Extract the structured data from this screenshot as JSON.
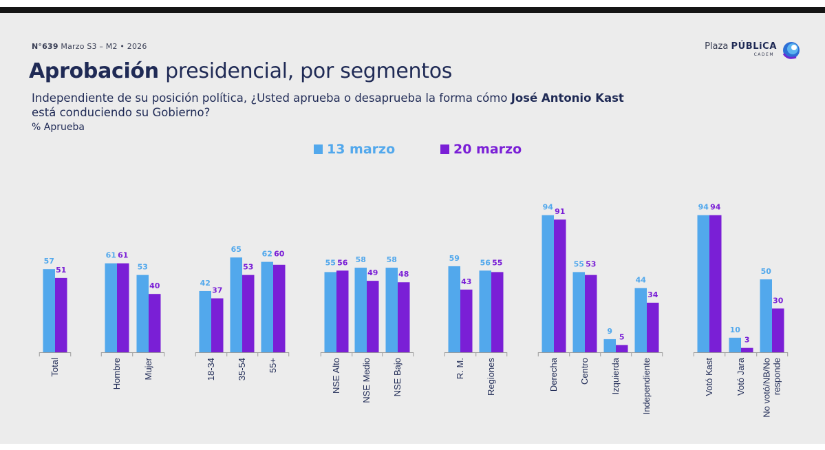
{
  "header": {
    "number": "N°639",
    "period": "Marzo S3 – M2 • 2026"
  },
  "logo": {
    "word_light": "Plaza",
    "word_bold": "PÚBLiCA",
    "sub": "CADEM",
    "icon": "circle-swirl-logo-icon"
  },
  "title": {
    "bold": "Aprobación",
    "rest": "presidencial, por segmentos"
  },
  "question": {
    "before": "Independiente de su posición política, ¿Usted aprueba o desaprueba la forma cómo",
    "name": "José Antonio Kast",
    "after": "está conduciendo su Gobierno?"
  },
  "unit_label": "% Aprueba",
  "colors": {
    "series1": "#52a8ec",
    "series2": "#7a1fd6",
    "label1": "#52a8ec",
    "label2": "#7a1fd6",
    "axis": "#9a9a9a",
    "text": "#1f2a55"
  },
  "chart_data": {
    "type": "bar",
    "categories": [
      "Total",
      "Hombre",
      "Mujer",
      "18-34",
      "35-54",
      "55+",
      "NSE Alto",
      "NSE Medio",
      "NSE Bajo",
      "R. M.",
      "Regiones",
      "Derecha",
      "Centro",
      "Izquierda",
      "Independiente",
      "Votó Kast",
      "Votó Jara",
      "No votó/NB/No responde"
    ],
    "category_lines": [
      [
        "Total"
      ],
      [
        "Hombre"
      ],
      [
        "Mujer"
      ],
      [
        "18-34"
      ],
      [
        "35-54"
      ],
      [
        "55+"
      ],
      [
        "NSE Alto"
      ],
      [
        "NSE Medio"
      ],
      [
        "NSE Bajo"
      ],
      [
        "R. M."
      ],
      [
        "Regiones"
      ],
      [
        "Derecha"
      ],
      [
        "Centro"
      ],
      [
        "Izquierda"
      ],
      [
        "Independiente"
      ],
      [
        "Votó Kast"
      ],
      [
        "Votó Jara"
      ],
      [
        "No votó/NB/No",
        "responde"
      ]
    ],
    "groups": [
      [
        0
      ],
      [
        1,
        2
      ],
      [
        3,
        4,
        5
      ],
      [
        6,
        7,
        8
      ],
      [
        9,
        10
      ],
      [
        11,
        12,
        13,
        14
      ],
      [
        15,
        16,
        17
      ]
    ],
    "series": [
      {
        "name": "13 marzo",
        "values": [
          57,
          61,
          53,
          42,
          65,
          62,
          55,
          58,
          58,
          59,
          56,
          94,
          55,
          9,
          44,
          94,
          10,
          50
        ]
      },
      {
        "name": "20 marzo",
        "values": [
          51,
          61,
          40,
          37,
          53,
          60,
          56,
          49,
          48,
          43,
          55,
          91,
          53,
          5,
          34,
          94,
          3,
          30
        ]
      }
    ],
    "ylim": [
      0,
      100
    ],
    "grid": false,
    "legend": "top-center"
  }
}
